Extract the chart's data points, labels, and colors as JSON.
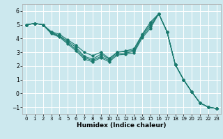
{
  "xlabel": "Humidex (Indice chaleur)",
  "bg_color": "#cce8ee",
  "line_color": "#1a7a6e",
  "grid_color": "#ffffff",
  "xlim": [
    -0.5,
    23.5
  ],
  "ylim": [
    -1.5,
    6.5
  ],
  "yticks": [
    -1,
    0,
    1,
    2,
    3,
    4,
    5,
    6
  ],
  "xticks": [
    0,
    1,
    2,
    3,
    4,
    5,
    6,
    7,
    8,
    9,
    10,
    11,
    12,
    13,
    14,
    15,
    16,
    17,
    18,
    19,
    20,
    21,
    22,
    23
  ],
  "lines": [
    {
      "x": [
        0,
        1,
        2,
        3,
        4,
        5,
        6,
        7,
        8,
        9,
        10,
        11,
        12,
        13,
        14,
        15,
        16,
        17,
        18,
        19,
        20,
        21,
        22,
        23
      ],
      "y": [
        5.0,
        5.1,
        5.0,
        4.5,
        4.3,
        3.9,
        3.5,
        3.0,
        2.75,
        3.0,
        2.55,
        3.0,
        3.1,
        3.25,
        4.3,
        5.2,
        5.8,
        4.5,
        2.1,
        1.0,
        0.1,
        -0.7,
        -1.0,
        -1.1
      ]
    },
    {
      "x": [
        0,
        1,
        2,
        3,
        4,
        5,
        6,
        7,
        8,
        9,
        10,
        11,
        12,
        13,
        14,
        15,
        16,
        17,
        18,
        19,
        20,
        21,
        22,
        23
      ],
      "y": [
        5.0,
        5.1,
        5.0,
        4.45,
        4.2,
        3.8,
        3.35,
        2.7,
        2.5,
        2.85,
        2.5,
        3.0,
        3.05,
        3.15,
        4.25,
        5.05,
        5.8,
        4.5,
        2.1,
        1.0,
        0.1,
        -0.7,
        -1.0,
        -1.1
      ]
    },
    {
      "x": [
        0,
        1,
        2,
        3,
        4,
        5,
        6,
        7,
        8,
        9,
        10,
        11,
        12,
        13,
        14,
        15,
        16,
        17,
        18,
        19,
        20,
        21,
        22,
        23
      ],
      "y": [
        5.0,
        5.1,
        5.0,
        4.4,
        4.15,
        3.7,
        3.2,
        2.6,
        2.4,
        2.7,
        2.4,
        2.9,
        2.95,
        3.05,
        4.15,
        4.9,
        5.8,
        4.5,
        2.1,
        1.0,
        0.1,
        -0.7,
        -1.0,
        -1.1
      ]
    },
    {
      "x": [
        0,
        1,
        2,
        3,
        4,
        5,
        6,
        7,
        8,
        9,
        10,
        11,
        12,
        13,
        14,
        15,
        16,
        17,
        18,
        19,
        20,
        21,
        22,
        23
      ],
      "y": [
        5.0,
        5.1,
        5.0,
        4.35,
        4.1,
        3.6,
        3.1,
        2.5,
        2.3,
        2.6,
        2.3,
        2.8,
        2.85,
        2.95,
        4.05,
        4.75,
        5.8,
        4.5,
        2.1,
        1.0,
        0.1,
        -0.7,
        -1.0,
        -1.1
      ]
    }
  ]
}
